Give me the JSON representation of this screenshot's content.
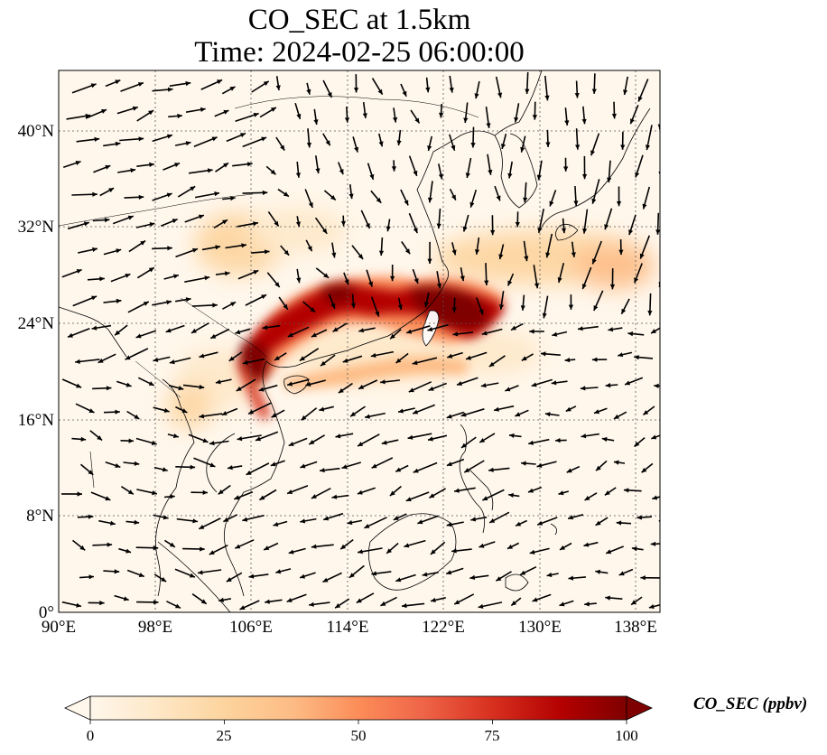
{
  "title": {
    "line1": "CO_SEC at 1.5km",
    "line2": "Time: 2024-02-25 06:00:00"
  },
  "map": {
    "extent": {
      "lon": [
        90,
        140
      ],
      "lat": [
        0,
        45
      ]
    },
    "lon_ticks": [
      "90°E",
      "98°E",
      "106°E",
      "114°E",
      "122°E",
      "130°E",
      "138°E"
    ],
    "lat_ticks": [
      "0°",
      "8°N",
      "16°N",
      "24°N",
      "32°N",
      "40°N"
    ],
    "gridlines": true,
    "field": "CO_SEC",
    "colormap": "OrRd",
    "plume_description_points_lon_lat": [
      [
        104.5,
        20.5
      ],
      [
        107,
        21.5
      ],
      [
        110,
        24
      ],
      [
        113,
        26
      ],
      [
        116,
        25.5
      ],
      [
        119,
        26.5
      ],
      [
        122,
        26
      ],
      [
        125,
        24.5
      ],
      [
        127,
        24
      ],
      [
        120,
        22
      ],
      [
        114,
        19.5
      ],
      [
        108,
        18
      ]
    ],
    "wind_vectors": true
  },
  "colorbar": {
    "label": "CO_SEC (ppbv)",
    "ticks": [
      "0",
      "25",
      "50",
      "75",
      "100"
    ],
    "range": [
      0,
      100
    ],
    "extend": "both",
    "colors": [
      "#fff7ec",
      "#fee8c8",
      "#fdd49e",
      "#fdbb84",
      "#fc8d59",
      "#ef6548",
      "#d7301f",
      "#b30000",
      "#7f0000"
    ]
  }
}
